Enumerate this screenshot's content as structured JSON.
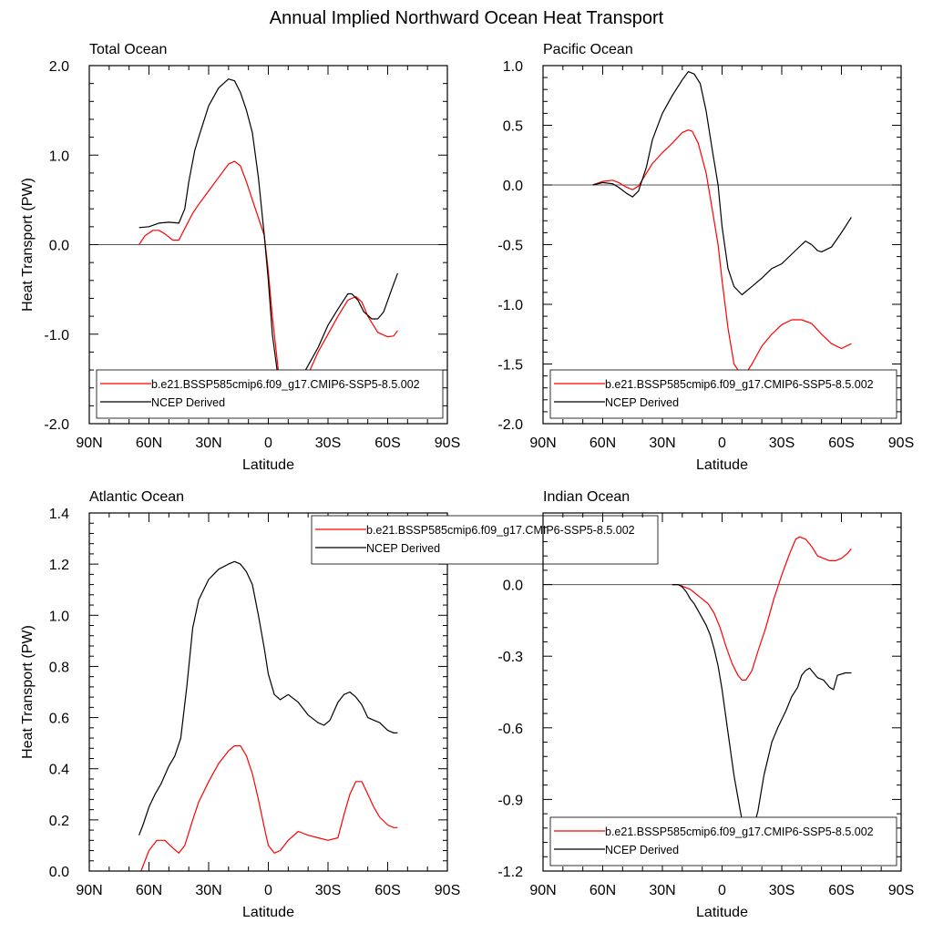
{
  "title": "Annual Implied Northward Ocean Heat Transport",
  "colors": {
    "model": "#ff0000",
    "ncep": "#000000",
    "zero_line": "#555555",
    "frame": "#000000"
  },
  "chart_data": [
    {
      "type": "line",
      "title": "Total Ocean",
      "xlabel": "Latitude",
      "ylabel": "Heat Transport (PW)",
      "xlim": [
        90,
        -90
      ],
      "x_ticks": [
        90,
        60,
        30,
        0,
        -30,
        -60,
        -90
      ],
      "x_tick_labels": [
        "90N",
        "60N",
        "30N",
        "0",
        "30S",
        "60S",
        "90S"
      ],
      "ylim": [
        -2.0,
        2.0
      ],
      "y_ticks": [
        -2.0,
        -1.0,
        0.0,
        1.0,
        2.0
      ],
      "y_tick_labels": [
        "-2.0",
        "-1.0",
        "0.0",
        "1.0",
        "2.0"
      ],
      "legend_placement": "lower-center",
      "series": [
        {
          "name": "b.e21.BSSP585cmip6.f09_g17.CMIP6-SSP5-8.5.002",
          "color": "#ff0000",
          "x": [
            65,
            62,
            58,
            55,
            52,
            48,
            45,
            42,
            38,
            35,
            30,
            25,
            20,
            17,
            14,
            11,
            8,
            5,
            2,
            0,
            -2,
            -5,
            -8,
            -10,
            -12,
            -15,
            -18,
            -22,
            -25,
            -30,
            -35,
            -40,
            -44,
            -47,
            -50,
            -55,
            -60,
            -63,
            -65
          ],
          "y": [
            0.0,
            0.1,
            0.16,
            0.16,
            0.12,
            0.05,
            0.05,
            0.18,
            0.35,
            0.45,
            0.6,
            0.75,
            0.9,
            0.93,
            0.88,
            0.7,
            0.5,
            0.3,
            0.1,
            -0.3,
            -0.8,
            -1.4,
            -1.7,
            -1.88,
            -1.92,
            -1.75,
            -1.55,
            -1.35,
            -1.2,
            -1.0,
            -0.8,
            -0.62,
            -0.58,
            -0.64,
            -0.8,
            -0.98,
            -1.03,
            -1.02,
            -0.96
          ]
        },
        {
          "name": "NCEP Derived",
          "color": "#000000",
          "x": [
            65,
            60,
            55,
            50,
            45,
            42,
            40,
            37,
            35,
            30,
            25,
            20,
            17,
            14,
            11,
            8,
            5,
            2,
            0,
            -2,
            -5,
            -8,
            -10,
            -12,
            -15,
            -20,
            -25,
            -30,
            -35,
            -40,
            -42,
            -45,
            -48,
            -52,
            -55,
            -58,
            -62,
            -65
          ],
          "y": [
            0.19,
            0.2,
            0.24,
            0.25,
            0.24,
            0.4,
            0.7,
            1.05,
            1.2,
            1.55,
            1.75,
            1.85,
            1.83,
            1.7,
            1.5,
            1.25,
            0.75,
            0.1,
            -0.4,
            -1.0,
            -1.5,
            -1.7,
            -1.68,
            -1.65,
            -1.55,
            -1.35,
            -1.15,
            -0.9,
            -0.72,
            -0.55,
            -0.55,
            -0.62,
            -0.75,
            -0.83,
            -0.83,
            -0.75,
            -0.5,
            -0.32
          ]
        }
      ]
    },
    {
      "type": "line",
      "title": "Pacific Ocean",
      "xlabel": "Latitude",
      "ylabel": "",
      "xlim": [
        90,
        -90
      ],
      "x_ticks": [
        90,
        60,
        30,
        0,
        -30,
        -60,
        -90
      ],
      "x_tick_labels": [
        "90N",
        "60N",
        "30N",
        "0",
        "30S",
        "60S",
        "90S"
      ],
      "ylim": [
        -2.0,
        1.0
      ],
      "y_ticks": [
        -2.0,
        -1.5,
        -1.0,
        -0.5,
        0.0,
        0.5,
        1.0
      ],
      "y_tick_labels": [
        "-2.0",
        "-1.5",
        "-1.0",
        "-0.5",
        "0.0",
        "0.5",
        "1.0"
      ],
      "legend_placement": "lower-center",
      "series": [
        {
          "name": "b.e21.BSSP585cmip6.f09_g17.CMIP6-SSP5-8.5.002",
          "color": "#ff0000",
          "x": [
            65,
            60,
            55,
            52,
            48,
            45,
            42,
            38,
            35,
            30,
            25,
            20,
            17,
            15,
            12,
            8,
            5,
            2,
            0,
            -3,
            -6,
            -10,
            -12,
            -15,
            -20,
            -25,
            -30,
            -35,
            -40,
            -45,
            -50,
            -55,
            -60,
            -65
          ],
          "y": [
            0.0,
            0.03,
            0.04,
            0.02,
            -0.02,
            -0.04,
            -0.01,
            0.1,
            0.18,
            0.27,
            0.35,
            0.44,
            0.46,
            0.45,
            0.35,
            0.1,
            -0.2,
            -0.5,
            -0.8,
            -1.2,
            -1.5,
            -1.6,
            -1.58,
            -1.5,
            -1.35,
            -1.25,
            -1.17,
            -1.13,
            -1.13,
            -1.16,
            -1.25,
            -1.33,
            -1.37,
            -1.33
          ]
        },
        {
          "name": "NCEP Derived",
          "color": "#000000",
          "x": [
            65,
            60,
            55,
            52,
            48,
            45,
            42,
            38,
            35,
            30,
            25,
            20,
            17,
            14,
            11,
            8,
            5,
            2,
            0,
            -3,
            -6,
            -10,
            -15,
            -20,
            -25,
            -30,
            -35,
            -40,
            -42,
            -45,
            -48,
            -50,
            -55,
            -60,
            -65
          ],
          "y": [
            0.0,
            0.02,
            0.01,
            -0.02,
            -0.07,
            -0.1,
            -0.05,
            0.15,
            0.38,
            0.6,
            0.75,
            0.88,
            0.95,
            0.93,
            0.85,
            0.62,
            0.3,
            0.0,
            -0.35,
            -0.7,
            -0.85,
            -0.92,
            -0.85,
            -0.78,
            -0.7,
            -0.66,
            -0.58,
            -0.5,
            -0.47,
            -0.5,
            -0.55,
            -0.56,
            -0.52,
            -0.4,
            -0.27
          ]
        }
      ]
    },
    {
      "type": "line",
      "title": "Atlantic Ocean",
      "xlabel": "Latitude",
      "ylabel": "Heat Transport (PW)",
      "xlim": [
        90,
        -90
      ],
      "x_ticks": [
        90,
        60,
        30,
        0,
        -30,
        -60,
        -90
      ],
      "x_tick_labels": [
        "90N",
        "60N",
        "30N",
        "0",
        "30S",
        "60S",
        "90S"
      ],
      "ylim": [
        0.0,
        1.4
      ],
      "y_ticks": [
        0.0,
        0.2,
        0.4,
        0.6,
        0.8,
        1.0,
        1.2,
        1.4
      ],
      "y_tick_labels": [
        "0.0",
        "0.2",
        "0.4",
        "0.6",
        "0.8",
        "1.0",
        "1.2",
        "1.4"
      ],
      "legend_placement": "top-center",
      "series": [
        {
          "name": "b.e21.BSSP585cmip6.f09_g17.CMIP6-SSP5-8.5.002",
          "color": "#ff0000",
          "x": [
            64,
            60,
            56,
            52,
            48,
            45,
            42,
            38,
            35,
            30,
            25,
            20,
            17,
            14,
            11,
            8,
            5,
            2,
            0,
            -3,
            -6,
            -10,
            -15,
            -20,
            -25,
            -30,
            -35,
            -38,
            -41,
            -44,
            -47,
            -50,
            -53,
            -56,
            -60,
            -63,
            -65
          ],
          "y": [
            0.0,
            0.08,
            0.12,
            0.12,
            0.09,
            0.07,
            0.1,
            0.2,
            0.27,
            0.35,
            0.42,
            0.47,
            0.49,
            0.49,
            0.45,
            0.38,
            0.28,
            0.17,
            0.1,
            0.07,
            0.08,
            0.12,
            0.155,
            0.14,
            0.13,
            0.12,
            0.13,
            0.22,
            0.3,
            0.35,
            0.35,
            0.3,
            0.25,
            0.21,
            0.18,
            0.17,
            0.17
          ]
        },
        {
          "name": "NCEP Derived",
          "color": "#000000",
          "x": [
            65,
            63,
            60,
            57,
            54,
            50,
            47,
            44,
            41,
            38,
            35,
            30,
            25,
            20,
            17,
            14,
            11,
            8,
            5,
            2,
            0,
            -3,
            -6,
            -10,
            -15,
            -20,
            -25,
            -28,
            -31,
            -35,
            -38,
            -41,
            -44,
            -47,
            -50,
            -53,
            -56,
            -60,
            -63,
            -65
          ],
          "y": [
            0.14,
            0.18,
            0.25,
            0.3,
            0.34,
            0.41,
            0.45,
            0.52,
            0.72,
            0.95,
            1.06,
            1.14,
            1.18,
            1.2,
            1.21,
            1.2,
            1.17,
            1.12,
            1.0,
            0.87,
            0.77,
            0.69,
            0.67,
            0.69,
            0.66,
            0.61,
            0.58,
            0.57,
            0.59,
            0.66,
            0.69,
            0.7,
            0.68,
            0.65,
            0.6,
            0.59,
            0.58,
            0.55,
            0.54,
            0.54
          ]
        }
      ]
    },
    {
      "type": "line",
      "title": "Indian Ocean",
      "xlabel": "Latitude",
      "ylabel": "",
      "xlim": [
        90,
        -90
      ],
      "x_ticks": [
        90,
        60,
        30,
        0,
        -30,
        -60,
        -90
      ],
      "x_tick_labels": [
        "90N",
        "60N",
        "30N",
        "0",
        "30S",
        "60S",
        "90S"
      ],
      "ylim": [
        -1.2,
        0.3
      ],
      "y_ticks": [
        -1.2,
        -0.9,
        -0.6,
        -0.3,
        0.0
      ],
      "y_tick_labels": [
        "-1.2",
        "-0.9",
        "-0.6",
        "-0.3",
        "0.0"
      ],
      "legend_placement": "lower-center",
      "series": [
        {
          "name": "b.e21.BSSP585cmip6.f09_g17.CMIP6-SSP5-8.5.002",
          "color": "#ff0000",
          "x": [
            25,
            22,
            19,
            16,
            13,
            10,
            7,
            4,
            1,
            -2,
            -5,
            -8,
            -10,
            -12,
            -15,
            -18,
            -22,
            -26,
            -30,
            -34,
            -37,
            -39,
            -42,
            -45,
            -48,
            -51,
            -54,
            -57,
            -60,
            -63,
            -65
          ],
          "y": [
            0.0,
            0.0,
            -0.01,
            -0.02,
            -0.04,
            -0.06,
            -0.08,
            -0.12,
            -0.18,
            -0.26,
            -0.33,
            -0.38,
            -0.4,
            -0.4,
            -0.36,
            -0.28,
            -0.18,
            -0.06,
            0.04,
            0.13,
            0.19,
            0.2,
            0.19,
            0.16,
            0.12,
            0.11,
            0.1,
            0.1,
            0.11,
            0.13,
            0.15
          ]
        },
        {
          "name": "NCEP Derived",
          "color": "#000000",
          "x": [
            25,
            22,
            20,
            18,
            16,
            14,
            12,
            10,
            8,
            6,
            4,
            2,
            0,
            -3,
            -6,
            -9,
            -11,
            -13,
            -15,
            -18,
            -21,
            -25,
            -28,
            -32,
            -35,
            -38,
            -40,
            -42,
            -44,
            -46,
            -48,
            -51,
            -54,
            -56,
            -58,
            -62,
            -65
          ],
          "y": [
            0.0,
            0.0,
            -0.01,
            -0.03,
            -0.06,
            -0.08,
            -0.11,
            -0.14,
            -0.17,
            -0.21,
            -0.27,
            -0.34,
            -0.44,
            -0.62,
            -0.8,
            -0.94,
            -1.03,
            -1.05,
            -1.04,
            -0.95,
            -0.8,
            -0.66,
            -0.6,
            -0.53,
            -0.47,
            -0.43,
            -0.38,
            -0.36,
            -0.35,
            -0.37,
            -0.39,
            -0.4,
            -0.43,
            -0.44,
            -0.38,
            -0.37,
            -0.37
          ]
        }
      ]
    }
  ]
}
